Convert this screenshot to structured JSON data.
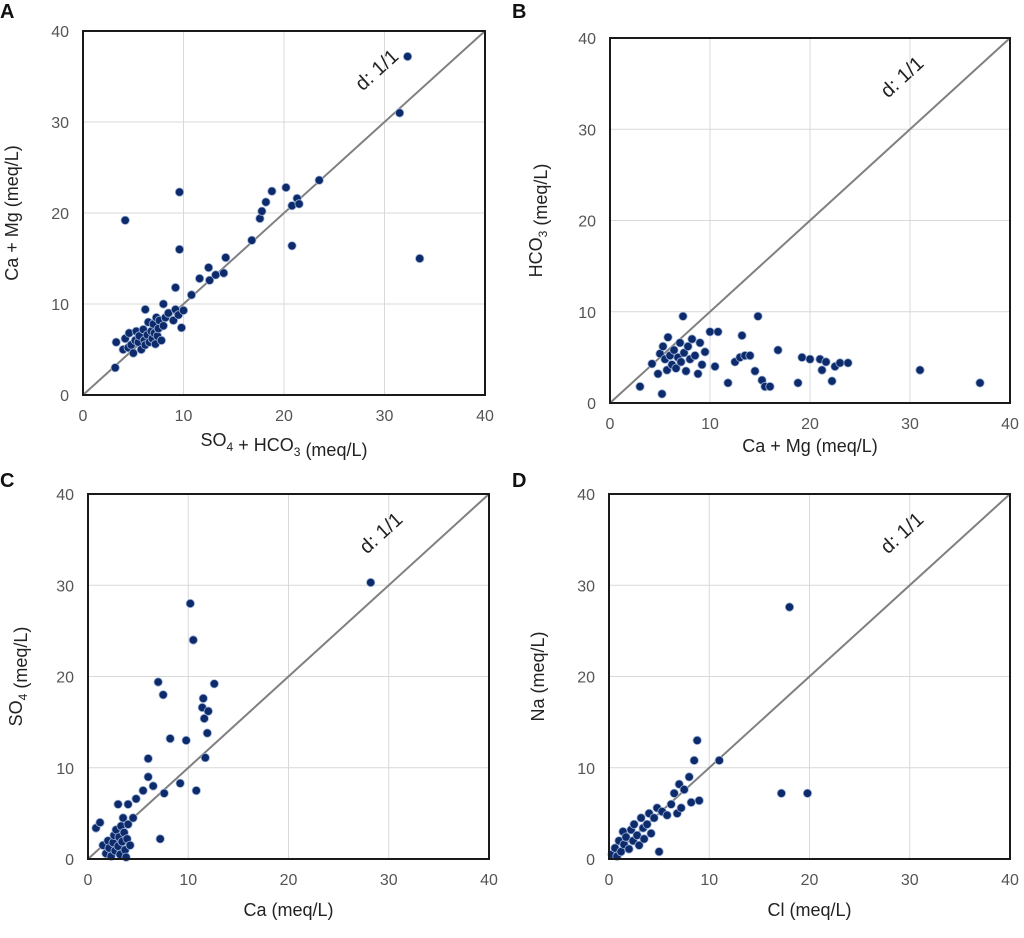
{
  "colors": {
    "marker": "#0d2a6b",
    "diagonal": "#808080",
    "grid": "#d9d9d9"
  },
  "chart_data": [
    {
      "panel": "A",
      "type": "scatter",
      "xlabel": {
        "pre": "SO",
        "sub1": "4",
        "mid": " + HCO",
        "sub2": "3",
        "post": " (meq/L)"
      },
      "ylabel": {
        "pre": "Ca + Mg (meq/L)",
        "sub1": "",
        "mid": "",
        "sub2": "",
        "post": ""
      },
      "xlim": [
        0,
        40
      ],
      "ylim": [
        0,
        40
      ],
      "xticks": [
        0,
        10,
        20,
        30,
        40
      ],
      "yticks": [
        0,
        10,
        20,
        30,
        40
      ],
      "diagonal_label": "d: 1/1",
      "points": [
        [
          3.2,
          3
        ],
        [
          3.3,
          5.8
        ],
        [
          4,
          5
        ],
        [
          4.2,
          6.2
        ],
        [
          4.5,
          5.2
        ],
        [
          4.6,
          6.8
        ],
        [
          4.8,
          5.5
        ],
        [
          5,
          4.6
        ],
        [
          5.2,
          6
        ],
        [
          5.3,
          7
        ],
        [
          5.5,
          5.8
        ],
        [
          5.6,
          6.5
        ],
        [
          5.8,
          5
        ],
        [
          6,
          7.2
        ],
        [
          6.1,
          6
        ],
        [
          6.2,
          5.5
        ],
        [
          6.4,
          6.6
        ],
        [
          6.5,
          8
        ],
        [
          6.6,
          5.8
        ],
        [
          6.8,
          7
        ],
        [
          6.9,
          6.2
        ],
        [
          7,
          7.8
        ],
        [
          7.1,
          6.8
        ],
        [
          7.2,
          5.6
        ],
        [
          7.3,
          8.5
        ],
        [
          7.4,
          6.5
        ],
        [
          7.5,
          7.3
        ],
        [
          7.6,
          8.2
        ],
        [
          7.8,
          6
        ],
        [
          8,
          7.6
        ],
        [
          8.2,
          8.5
        ],
        [
          8.5,
          9
        ],
        [
          9,
          8.2
        ],
        [
          9.2,
          9.4
        ],
        [
          9.5,
          8.8
        ],
        [
          6.2,
          9.4
        ],
        [
          8,
          10
        ],
        [
          9.2,
          11.8
        ],
        [
          10,
          9.3
        ],
        [
          9.8,
          7.4
        ],
        [
          10.8,
          11
        ],
        [
          11.6,
          12.8
        ],
        [
          12.5,
          14
        ],
        [
          12.6,
          12.6
        ],
        [
          13.2,
          13.2
        ],
        [
          14,
          13.4
        ],
        [
          14.2,
          15.1
        ],
        [
          16.8,
          17
        ],
        [
          17.6,
          19.4
        ],
        [
          17.8,
          20.2
        ],
        [
          18.2,
          21.2
        ],
        [
          18.8,
          22.4
        ],
        [
          20.2,
          22.8
        ],
        [
          20.8,
          20.8
        ],
        [
          20.8,
          16.4
        ],
        [
          21.3,
          21.6
        ],
        [
          21.5,
          21
        ],
        [
          23.5,
          23.6
        ],
        [
          4.2,
          19.2
        ],
        [
          9.6,
          22.3
        ],
        [
          9.6,
          16
        ],
        [
          31.5,
          31
        ],
        [
          32.3,
          37.2
        ],
        [
          33.5,
          15
        ]
      ]
    },
    {
      "panel": "B",
      "type": "scatter",
      "xlabel": {
        "pre": "Ca + Mg (meq/L)",
        "sub1": "",
        "mid": "",
        "sub2": "",
        "post": ""
      },
      "ylabel": {
        "pre": "HCO",
        "sub1": "3",
        "mid": " (meq/L)",
        "sub2": "",
        "post": ""
      },
      "xlim": [
        0,
        40
      ],
      "ylim": [
        0,
        40
      ],
      "xticks": [
        0,
        10,
        20,
        30,
        40
      ],
      "yticks": [
        0,
        10,
        20,
        30,
        40
      ],
      "diagonal_label": "d: 1/1",
      "points": [
        [
          3,
          1.8
        ],
        [
          4.2,
          4.3
        ],
        [
          4.8,
          3.2
        ],
        [
          5,
          5.4
        ],
        [
          5.2,
          1
        ],
        [
          5.3,
          6.2
        ],
        [
          5.5,
          4.8
        ],
        [
          5.7,
          3.6
        ],
        [
          5.8,
          7.2
        ],
        [
          6,
          5.2
        ],
        [
          6.2,
          4.2
        ],
        [
          6.4,
          5.8
        ],
        [
          6.6,
          3.8
        ],
        [
          6.8,
          5
        ],
        [
          7,
          6.6
        ],
        [
          7.1,
          4.5
        ],
        [
          7.3,
          9.5
        ],
        [
          7.4,
          5.5
        ],
        [
          7.6,
          3.5
        ],
        [
          7.8,
          6.2
        ],
        [
          8,
          4.8
        ],
        [
          8.2,
          7
        ],
        [
          8.5,
          5.2
        ],
        [
          8.8,
          3.2
        ],
        [
          9,
          6.6
        ],
        [
          9.2,
          4.2
        ],
        [
          9.5,
          5.6
        ],
        [
          10,
          7.8
        ],
        [
          10.5,
          4
        ],
        [
          10.8,
          7.8
        ],
        [
          11.8,
          2.2
        ],
        [
          12.5,
          4.5
        ],
        [
          13,
          5
        ],
        [
          13.2,
          7.4
        ],
        [
          13.5,
          5.2
        ],
        [
          14,
          5.2
        ],
        [
          14.5,
          3.5
        ],
        [
          14.8,
          9.5
        ],
        [
          15.2,
          2.5
        ],
        [
          15.5,
          1.8
        ],
        [
          16,
          1.8
        ],
        [
          16.8,
          5.8
        ],
        [
          18.8,
          2.2
        ],
        [
          19.2,
          5
        ],
        [
          20,
          4.8
        ],
        [
          21,
          4.8
        ],
        [
          21.2,
          3.6
        ],
        [
          21.6,
          4.5
        ],
        [
          22.2,
          2.4
        ],
        [
          22.5,
          4
        ],
        [
          23,
          4.4
        ],
        [
          23.8,
          4.4
        ],
        [
          31,
          3.6
        ],
        [
          37,
          2.2
        ]
      ]
    },
    {
      "panel": "C",
      "type": "scatter",
      "xlabel": {
        "pre": "Ca (meq/L)",
        "sub1": "",
        "mid": "",
        "sub2": "",
        "post": ""
      },
      "ylabel": {
        "pre": "SO",
        "sub1": "4",
        "mid": " (meq/L)",
        "sub2": "",
        "post": ""
      },
      "xlim": [
        0,
        40
      ],
      "ylim": [
        0,
        40
      ],
      "xticks": [
        0,
        10,
        20,
        30,
        40
      ],
      "yticks": [
        0,
        10,
        20,
        30,
        40
      ],
      "diagonal_label": "d: 1/1",
      "points": [
        [
          0.8,
          3.4
        ],
        [
          1.2,
          4
        ],
        [
          1.5,
          1.5
        ],
        [
          1.8,
          0.6
        ],
        [
          2,
          2
        ],
        [
          2.1,
          1.2
        ],
        [
          2.3,
          0.3
        ],
        [
          2.5,
          1.8
        ],
        [
          2.6,
          2.6
        ],
        [
          2.7,
          0.9
        ],
        [
          2.8,
          3.2
        ],
        [
          3,
          1.4
        ],
        [
          3,
          6
        ],
        [
          3.1,
          2.4
        ],
        [
          3.2,
          0.5
        ],
        [
          3.3,
          3.6
        ],
        [
          3.4,
          1.9
        ],
        [
          3.5,
          4.5
        ],
        [
          3.6,
          2.9
        ],
        [
          3.7,
          1
        ],
        [
          3.8,
          0.2
        ],
        [
          3.9,
          2.2
        ],
        [
          4,
          3.8
        ],
        [
          4,
          6
        ],
        [
          4.2,
          1.5
        ],
        [
          4.5,
          4.5
        ],
        [
          4.8,
          6.6
        ],
        [
          5.5,
          7.5
        ],
        [
          6,
          9
        ],
        [
          6,
          11
        ],
        [
          6.5,
          8
        ],
        [
          7,
          19.4
        ],
        [
          7.2,
          2.2
        ],
        [
          7.5,
          18
        ],
        [
          7.6,
          7.2
        ],
        [
          8.2,
          13.2
        ],
        [
          9.2,
          8.3
        ],
        [
          9.8,
          13
        ],
        [
          10.2,
          28
        ],
        [
          10.5,
          24
        ],
        [
          10.8,
          7.5
        ],
        [
          11.4,
          16.6
        ],
        [
          11.5,
          17.6
        ],
        [
          11.6,
          15.4
        ],
        [
          11.7,
          11.1
        ],
        [
          11.9,
          13.8
        ],
        [
          12,
          16.2
        ],
        [
          12.6,
          19.2
        ],
        [
          28.2,
          30.3
        ]
      ]
    },
    {
      "panel": "D",
      "type": "scatter",
      "xlabel": {
        "pre": "Cl (meq/L)",
        "sub1": "",
        "mid": "",
        "sub2": "",
        "post": ""
      },
      "ylabel": {
        "pre": "Na (meq/L)",
        "sub1": "",
        "mid": "",
        "sub2": "",
        "post": ""
      },
      "xlim": [
        0,
        40
      ],
      "ylim": [
        0,
        40
      ],
      "xticks": [
        0,
        10,
        20,
        30,
        40
      ],
      "yticks": [
        0,
        10,
        20,
        30,
        40
      ],
      "diagonal_label": "d: 1/1",
      "points": [
        [
          0.3,
          0.5
        ],
        [
          0.6,
          1.2
        ],
        [
          0.8,
          0.3
        ],
        [
          1,
          2
        ],
        [
          1.2,
          0.8
        ],
        [
          1.4,
          3
        ],
        [
          1.5,
          1.6
        ],
        [
          1.7,
          2.4
        ],
        [
          2,
          1.1
        ],
        [
          2.2,
          3.2
        ],
        [
          2.4,
          2
        ],
        [
          2.5,
          3.8
        ],
        [
          2.8,
          2.6
        ],
        [
          3,
          1.5
        ],
        [
          3.2,
          4.5
        ],
        [
          3.4,
          3.4
        ],
        [
          3.5,
          2.2
        ],
        [
          3.8,
          3.8
        ],
        [
          4,
          5
        ],
        [
          4.2,
          2.8
        ],
        [
          4.5,
          4.5
        ],
        [
          4.8,
          5.6
        ],
        [
          5,
          0.8
        ],
        [
          5.3,
          5.2
        ],
        [
          5.8,
          4.8
        ],
        [
          6.2,
          6
        ],
        [
          6.5,
          7.2
        ],
        [
          6.8,
          5
        ],
        [
          7,
          8.2
        ],
        [
          7.2,
          5.6
        ],
        [
          7.5,
          7.6
        ],
        [
          8,
          9
        ],
        [
          8.2,
          6.2
        ],
        [
          8.5,
          10.8
        ],
        [
          8.8,
          13
        ],
        [
          9,
          6.4
        ],
        [
          11,
          10.8
        ],
        [
          17.2,
          7.2
        ],
        [
          18,
          27.6
        ],
        [
          19.8,
          7.2
        ]
      ]
    }
  ]
}
